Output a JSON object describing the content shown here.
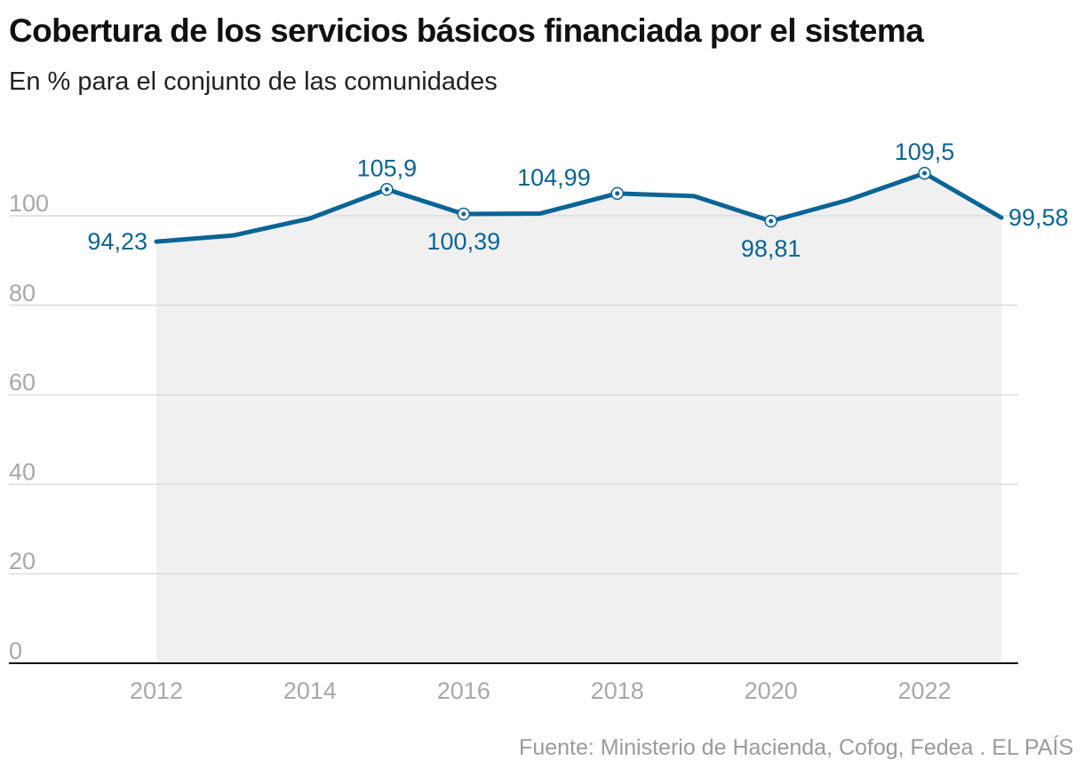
{
  "header": {
    "title": "Cobertura de los servicios básicos financiada por el sistema",
    "subtitle": "En % para el conjunto de las comunidades"
  },
  "footer": {
    "source": "Fuente: Ministerio de Hacienda, Cofog, Fedea . EL PAÍS"
  },
  "colors": {
    "line": "#0a6496",
    "area": "#f0f0f0",
    "grid": "#dcdcdc",
    "tick_label": "#a8a8a8",
    "axis": "#111111"
  },
  "chart_data": {
    "type": "area",
    "title": "Cobertura de los servicios básicos financiada por el sistema",
    "subtitle": "En % para el conjunto de las comunidades",
    "x": [
      2012,
      2013,
      2014,
      2015,
      2016,
      2017,
      2018,
      2019,
      2020,
      2021,
      2022,
      2023
    ],
    "series": [
      {
        "values": [
          94.23,
          95.6,
          99.4,
          105.9,
          100.39,
          100.5,
          104.99,
          104.4,
          98.81,
          103.5,
          109.5,
          99.58
        ]
      }
    ],
    "xlim": [
      2012,
      2023
    ],
    "ylim": [
      0,
      115
    ],
    "yticks": [
      0,
      20,
      40,
      60,
      80,
      100
    ],
    "ytick_labels": [
      "0",
      "20",
      "40",
      "60",
      "80",
      "100"
    ],
    "xticks": [
      2012,
      2014,
      2016,
      2018,
      2020,
      2022
    ],
    "xtick_labels": [
      "2012",
      "2014",
      "2016",
      "2018",
      "2020",
      "2022"
    ],
    "grid": true,
    "annotations": [
      {
        "x": 2012,
        "y": 94.23,
        "text": "94,23",
        "position": "left",
        "marker": false
      },
      {
        "x": 2015,
        "y": 105.9,
        "text": "105,9",
        "position": "above",
        "marker": true
      },
      {
        "x": 2016,
        "y": 100.39,
        "text": "100,39",
        "position": "below",
        "marker": true
      },
      {
        "x": 2018,
        "y": 104.99,
        "text": "104,99",
        "position": "above-left",
        "marker": true
      },
      {
        "x": 2020,
        "y": 98.81,
        "text": "98,81",
        "position": "below",
        "marker": true
      },
      {
        "x": 2022,
        "y": 109.5,
        "text": "109,5",
        "position": "above",
        "marker": true
      },
      {
        "x": 2023,
        "y": 99.58,
        "text": "99,58",
        "position": "right",
        "marker": false
      }
    ]
  }
}
